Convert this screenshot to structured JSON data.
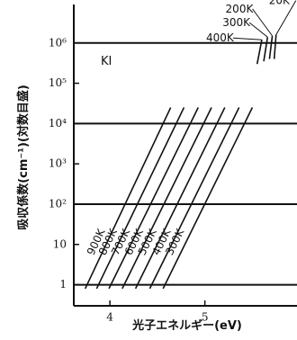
{
  "chart_data": {
    "type": "line",
    "annotation": "KI",
    "xlabel": "光子エネルギー(eV)",
    "ylabel": "吸収係数(cm⁻¹)(対数目盛)",
    "xlim": [
      3.62,
      5.97
    ],
    "xticks": [
      4,
      5
    ],
    "ylim": [
      0.3,
      9000000
    ],
    "ylog": true,
    "yticks": [
      1,
      10,
      {
        "value": 100,
        "label": "10²"
      },
      {
        "value": 1000,
        "label": "10³"
      },
      {
        "value": 10000,
        "label": "10⁴"
      },
      {
        "value": 100000,
        "label": "10⁵"
      },
      {
        "value": 1000000,
        "label": "10⁶"
      }
    ],
    "grid": true,
    "color": "#111",
    "series": [
      {
        "name": "900K",
        "x": [
          3.74,
          4.64
        ],
        "values": [
          0.8,
          25000
        ]
      },
      {
        "name": "800K",
        "x": [
          3.86,
          4.78
        ],
        "values": [
          0.8,
          25000
        ]
      },
      {
        "name": "700K",
        "x": [
          3.99,
          4.93
        ],
        "values": [
          0.8,
          25000
        ]
      },
      {
        "name": "600K",
        "x": [
          4.13,
          5.07
        ],
        "values": [
          0.8,
          25000
        ]
      },
      {
        "name": "500K",
        "x": [
          4.27,
          5.21
        ],
        "values": [
          0.8,
          25000
        ]
      },
      {
        "name": "400K",
        "x": [
          4.42,
          5.36
        ],
        "values": [
          0.8,
          25000
        ]
      },
      {
        "name": "300K",
        "x": [
          4.56,
          5.5
        ],
        "values": [
          0.8,
          25000
        ]
      },
      {
        "name": "400K",
        "x": [
          5.55,
          5.6
        ],
        "values": [
          300000,
          1200000
        ]
      },
      {
        "name": "300K",
        "x": [
          5.62,
          5.66
        ],
        "values": [
          350000,
          1400000
        ]
      },
      {
        "name": "200K",
        "x": [
          5.68,
          5.71
        ],
        "values": [
          400000,
          1500000
        ]
      },
      {
        "name": "20K",
        "x": [
          5.73,
          5.75
        ],
        "values": [
          400000,
          1600000
        ]
      }
    ]
  }
}
